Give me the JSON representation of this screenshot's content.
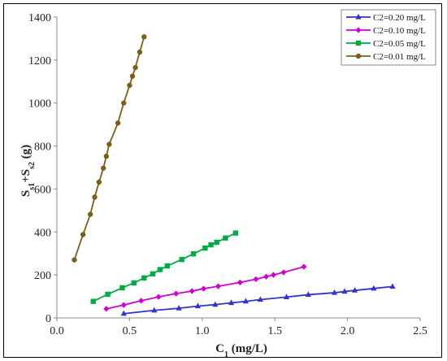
{
  "chart_data": {
    "type": "line",
    "xlabel": "C",
    "xlabel_sub": "1",
    "xlabel_unit": " (mg/L)",
    "ylabel_parts": [
      "S",
      "s1",
      "+S",
      "s2",
      " (g)"
    ],
    "xlim": [
      0,
      2.5
    ],
    "ylim": [
      0,
      1400
    ],
    "xticks": [
      "0.0",
      "0.5",
      "1.0",
      "1.5",
      "2.0",
      "2.5"
    ],
    "yticks": [
      "0",
      "200",
      "400",
      "600",
      "800",
      "1000",
      "1200",
      "1400"
    ],
    "grid": false,
    "legend_position": "top-right",
    "series": [
      {
        "name": "C2=0.20 mg/L",
        "color": "#3333cc",
        "marker": "triangle",
        "x": [
          0.46,
          0.67,
          0.84,
          0.97,
          1.09,
          1.2,
          1.3,
          1.4,
          1.58,
          1.73,
          1.91,
          1.98,
          2.05,
          2.18,
          2.31
        ],
        "y": [
          20,
          35,
          45,
          55,
          62,
          70,
          77,
          85,
          97,
          108,
          117,
          123,
          128,
          137,
          146
        ]
      },
      {
        "name": "C2=0.10 mg/L",
        "color": "#cc00cc",
        "marker": "diamond",
        "x": [
          0.34,
          0.46,
          0.58,
          0.7,
          0.82,
          0.93,
          1.01,
          1.11,
          1.26,
          1.37,
          1.44,
          1.49,
          1.56,
          1.7
        ],
        "y": [
          42,
          60,
          80,
          98,
          113,
          125,
          136,
          147,
          165,
          180,
          192,
          200,
          212,
          238
        ]
      },
      {
        "name": "C2=0.05 mg/L",
        "color": "#00aa44",
        "marker": "square",
        "x": [
          0.25,
          0.35,
          0.45,
          0.53,
          0.6,
          0.66,
          0.71,
          0.76,
          0.86,
          0.94,
          1.02,
          1.06,
          1.1,
          1.16,
          1.23
        ],
        "y": [
          77,
          110,
          140,
          163,
          186,
          205,
          225,
          242,
          272,
          298,
          325,
          340,
          352,
          372,
          395
        ]
      },
      {
        "name": "C2=0.01 mg/L",
        "color": "#7a5f1c",
        "marker": "circle",
        "x": [
          0.12,
          0.18,
          0.23,
          0.26,
          0.29,
          0.32,
          0.34,
          0.36,
          0.42,
          0.46,
          0.5,
          0.52,
          0.54,
          0.57,
          0.6
        ],
        "y": [
          270,
          388,
          482,
          562,
          632,
          697,
          752,
          808,
          907,
          1000,
          1082,
          1125,
          1165,
          1237,
          1308
        ]
      }
    ]
  }
}
